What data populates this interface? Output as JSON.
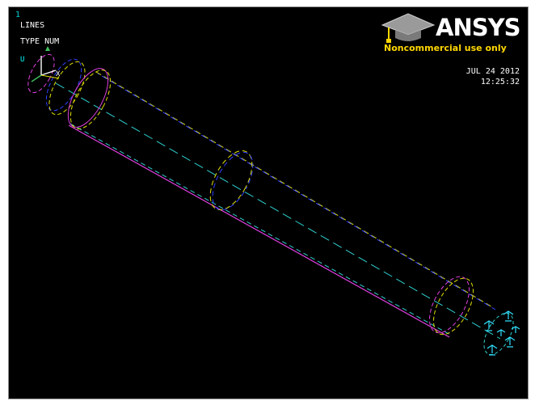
{
  "window": {
    "number": "1"
  },
  "plot": {
    "entity": "LINES",
    "label_mode": "TYPE NUM"
  },
  "stamp": {
    "date": "JUL 24 2012",
    "time": "12:25:32"
  },
  "triad": {
    "axis_u": "U",
    "axis_x": "X"
  },
  "logo": {
    "wordmark": "ANSYS",
    "tagline": "Noncommercial use only",
    "icon": "graduation-cap-icon"
  },
  "colors": {
    "background": "#000000",
    "text": "#ffffff",
    "logo_tagline": "#ffd700",
    "line_yellow": "#e0e000",
    "line_blue": "#3040ff",
    "line_cyan": "#30d0d0",
    "line_magenta": "#e040e0",
    "line_green": "#40c060",
    "constraint": "#30e0ff"
  }
}
